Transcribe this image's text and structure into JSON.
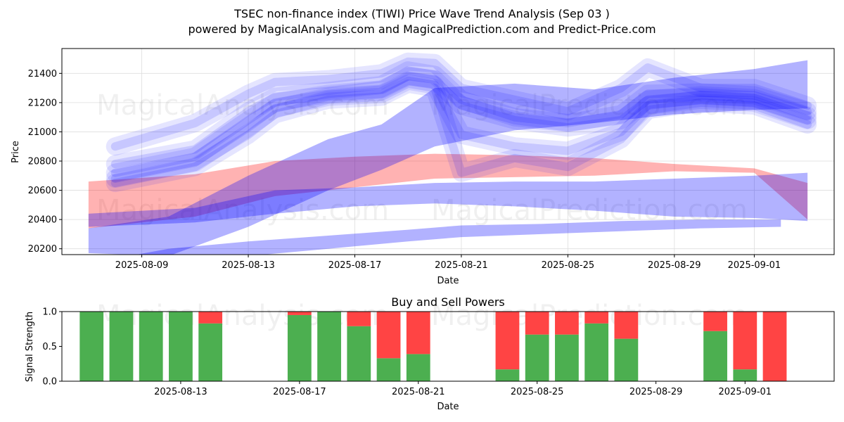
{
  "figure": {
    "title": "TSEC non-finance index (TIWI) Price Wave Trend Analysis (Sep 03 )",
    "subtitle": "powered by MagicalAnalysis.com and MagicalPrediction.com and Predict-Price.com",
    "watermarks": [
      "MagicalAnalysis.com",
      "MagicalPrediction.com"
    ]
  },
  "colors": {
    "blue": "#0000ff",
    "red": "#ff0000",
    "buy": "#4caf50",
    "sell": "#ff4444"
  },
  "chart_data": [
    {
      "type": "area",
      "title": "",
      "xlabel": "Date",
      "ylabel": "Price",
      "x_ticks": [
        "2025-08-09",
        "2025-08-13",
        "2025-08-17",
        "2025-08-21",
        "2025-08-25",
        "2025-08-29",
        "2025-09-01"
      ],
      "y_ticks": [
        20200,
        20400,
        20600,
        20800,
        21000,
        21200,
        21400
      ],
      "xlim": [
        "2025-08-06",
        "2025-09-04"
      ],
      "ylim": [
        20160,
        21570
      ],
      "grid": true,
      "bands": [
        {
          "color": "red",
          "x": [
            "2025-08-07",
            "2025-08-11",
            "2025-08-14",
            "2025-08-17",
            "2025-08-20",
            "2025-08-23",
            "2025-08-26",
            "2025-08-29",
            "2025-09-01",
            "2025-09-03"
          ],
          "upper": [
            20660,
            20710,
            20800,
            20830,
            20850,
            20840,
            20820,
            20780,
            20750,
            20650
          ],
          "lower": [
            20340,
            20420,
            20560,
            20620,
            20680,
            20690,
            20700,
            20730,
            20720,
            20400
          ]
        },
        {
          "color": "blue",
          "x": [
            "2025-08-07",
            "2025-08-11",
            "2025-08-14",
            "2025-08-17",
            "2025-08-20",
            "2025-08-23",
            "2025-08-26",
            "2025-08-29",
            "2025-09-01",
            "2025-09-03"
          ],
          "upper": [
            20440,
            20480,
            20600,
            20620,
            20650,
            20660,
            20660,
            20680,
            20700,
            20720
          ],
          "lower": [
            20350,
            20380,
            20440,
            20490,
            20510,
            20490,
            20460,
            20420,
            20410,
            20390
          ]
        },
        {
          "color": "blue",
          "x": [
            "2025-08-07",
            "2025-08-10",
            "2025-08-13",
            "2025-08-16",
            "2025-08-18",
            "2025-08-20",
            "2025-08-23",
            "2025-08-26",
            "2025-08-29",
            "2025-09-01",
            "2025-09-03"
          ],
          "upper": [
            20340,
            20420,
            20700,
            20950,
            21050,
            21300,
            21330,
            21290,
            21370,
            21430,
            21490
          ],
          "lower": [
            20170,
            20150,
            20350,
            20600,
            20740,
            20900,
            21010,
            21060,
            21120,
            21150,
            21160
          ]
        },
        {
          "color": "blue",
          "x": [
            "2025-08-07",
            "2025-08-10",
            "2025-08-13",
            "2025-08-16",
            "2025-08-19",
            "2025-08-21",
            "2025-08-24",
            "2025-08-27",
            "2025-08-30",
            "2025-09-02"
          ],
          "upper": [
            20100,
            20200,
            20250,
            20290,
            20330,
            20360,
            20370,
            20390,
            20400,
            20400
          ],
          "lower": [
            20000,
            20050,
            20150,
            20200,
            20250,
            20280,
            20300,
            20320,
            20340,
            20350
          ]
        }
      ],
      "waves": [
        {
          "x": [
            "2025-08-08",
            "2025-08-11",
            "2025-08-13",
            "2025-08-14",
            "2025-08-16",
            "2025-08-18",
            "2025-08-19",
            "2025-08-20",
            "2025-08-21",
            "2025-08-23",
            "2025-08-25",
            "2025-08-27",
            "2025-08-28",
            "2025-08-30",
            "2025-09-01",
            "2025-09-03"
          ],
          "y": [
            20720,
            20830,
            21080,
            21200,
            21260,
            21290,
            21380,
            21360,
            21180,
            21080,
            21030,
            21080,
            21220,
            21250,
            21230,
            21110
          ]
        },
        {
          "x": [
            "2025-08-08",
            "2025-08-11",
            "2025-08-13",
            "2025-08-14",
            "2025-08-16",
            "2025-08-18",
            "2025-08-19",
            "2025-08-20",
            "2025-08-21",
            "2025-08-23",
            "2025-08-25",
            "2025-08-27",
            "2025-08-28",
            "2025-08-30",
            "2025-09-01",
            "2025-09-03"
          ],
          "y": [
            20780,
            20880,
            21140,
            21240,
            21280,
            21320,
            21420,
            21390,
            21220,
            21100,
            21060,
            21120,
            21260,
            21270,
            21250,
            21140
          ]
        },
        {
          "x": [
            "2025-08-08",
            "2025-08-11",
            "2025-08-13",
            "2025-08-14",
            "2025-08-16",
            "2025-08-18",
            "2025-08-19",
            "2025-08-20",
            "2025-08-21",
            "2025-08-23",
            "2025-08-25",
            "2025-08-27",
            "2025-08-28",
            "2025-08-30",
            "2025-09-01",
            "2025-09-03"
          ],
          "y": [
            20680,
            20790,
            21030,
            21160,
            21240,
            21260,
            21350,
            21320,
            20980,
            20900,
            20870,
            21000,
            21180,
            21220,
            21200,
            21080
          ]
        },
        {
          "x": [
            "2025-08-08",
            "2025-08-11",
            "2025-08-13",
            "2025-08-14",
            "2025-08-16",
            "2025-08-18",
            "2025-08-19",
            "2025-08-20",
            "2025-08-21",
            "2025-08-23",
            "2025-08-25",
            "2025-08-27",
            "2025-08-28",
            "2025-08-30",
            "2025-09-01",
            "2025-09-03"
          ],
          "y": [
            20900,
            21060,
            21260,
            21340,
            21360,
            21400,
            21480,
            21470,
            21300,
            21220,
            21140,
            21300,
            21440,
            21300,
            21300,
            21180
          ]
        },
        {
          "x": [
            "2025-08-08",
            "2025-08-11",
            "2025-08-13",
            "2025-08-14",
            "2025-08-16",
            "2025-08-18",
            "2025-08-19",
            "2025-08-20",
            "2025-08-21",
            "2025-08-23",
            "2025-08-25",
            "2025-08-27",
            "2025-08-28",
            "2025-08-30",
            "2025-09-01",
            "2025-09-03"
          ],
          "y": [
            20650,
            20760,
            20980,
            21120,
            21220,
            21240,
            21330,
            21300,
            20720,
            20820,
            20760,
            20950,
            21150,
            21200,
            21180,
            21050
          ]
        }
      ]
    },
    {
      "type": "bar",
      "title": "Buy and Sell Powers",
      "xlabel": "Date",
      "ylabel": "Signal Strength",
      "x_ticks": [
        "2025-08-13",
        "2025-08-17",
        "2025-08-21",
        "2025-08-25",
        "2025-08-29",
        "2025-09-01"
      ],
      "y_ticks": [
        "0.0",
        "0.5",
        "1.0"
      ],
      "ylim": [
        0,
        1
      ],
      "xlim": [
        "2025-08-09",
        "2025-09-04"
      ],
      "dates": [
        "2025-08-10",
        "2025-08-11",
        "2025-08-12",
        "2025-08-13",
        "2025-08-14",
        "2025-08-17",
        "2025-08-18",
        "2025-08-19",
        "2025-08-20",
        "2025-08-21",
        "2025-08-24",
        "2025-08-25",
        "2025-08-26",
        "2025-08-27",
        "2025-08-28",
        "2025-08-31",
        "2025-09-01",
        "2025-09-02"
      ],
      "series": [
        {
          "name": "Buy",
          "values": [
            1.0,
            1.0,
            1.0,
            1.0,
            0.83,
            0.95,
            1.0,
            0.79,
            0.33,
            0.39,
            0.17,
            0.67,
            0.67,
            0.83,
            0.61,
            0.72,
            0.17,
            0.0
          ]
        },
        {
          "name": "Sell",
          "values": [
            0.0,
            0.0,
            0.0,
            0.0,
            0.17,
            0.05,
            0.0,
            0.21,
            0.67,
            0.61,
            0.83,
            0.33,
            0.33,
            0.17,
            0.39,
            0.28,
            0.83,
            1.0
          ]
        }
      ]
    }
  ]
}
